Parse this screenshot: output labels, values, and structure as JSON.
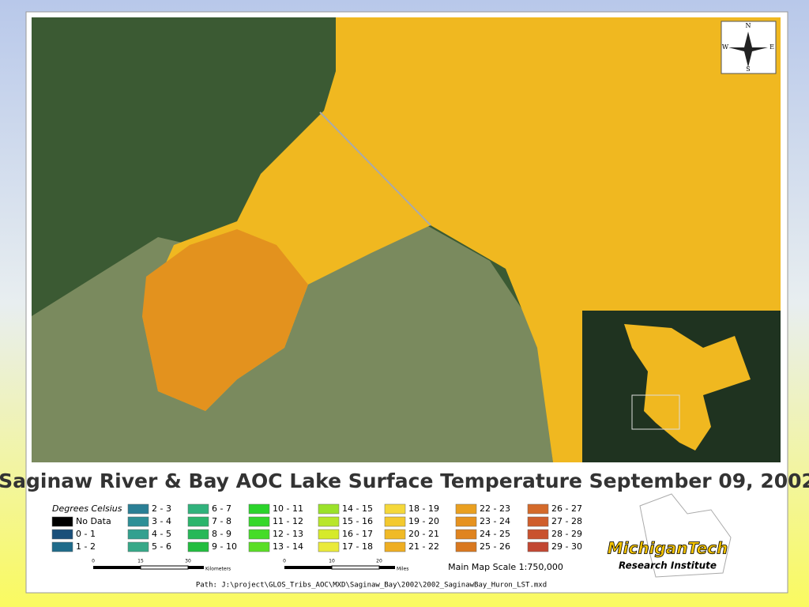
{
  "title": "Saginaw River & Bay AOC Lake Surface Temperature September 09, 2002",
  "compass": {
    "n": "N",
    "s": "S",
    "e": "E",
    "w": "W"
  },
  "legend": {
    "heading": "Degrees Celsius",
    "items": [
      {
        "label": "No Data",
        "color": "#000000"
      },
      {
        "label": "0 - 1",
        "color": "#1a4f7a"
      },
      {
        "label": "1 - 2",
        "color": "#1f6b8a"
      },
      {
        "label": "2 - 3",
        "color": "#2a7f95"
      },
      {
        "label": "3 - 4",
        "color": "#2e8f96"
      },
      {
        "label": "4 - 5",
        "color": "#33a08f"
      },
      {
        "label": "5 - 6",
        "color": "#36a888"
      },
      {
        "label": "6 - 7",
        "color": "#30b27c"
      },
      {
        "label": "7 - 8",
        "color": "#2bb56c"
      },
      {
        "label": "8 - 9",
        "color": "#27b858"
      },
      {
        "label": "9 - 10",
        "color": "#22bd3f"
      },
      {
        "label": "10 - 11",
        "color": "#2bd42b"
      },
      {
        "label": "11 - 12",
        "color": "#35d82a"
      },
      {
        "label": "12 - 13",
        "color": "#45dc28"
      },
      {
        "label": "13 - 14",
        "color": "#5ade26"
      },
      {
        "label": "14 - 15",
        "color": "#9be22a"
      },
      {
        "label": "15 - 16",
        "color": "#b8e62a"
      },
      {
        "label": "16 - 17",
        "color": "#d6ea2a"
      },
      {
        "label": "17 - 18",
        "color": "#eaea3a"
      },
      {
        "label": "18 - 19",
        "color": "#f5d83a"
      },
      {
        "label": "19 - 20",
        "color": "#f3c92e"
      },
      {
        "label": "20 - 21",
        "color": "#f0ba26"
      },
      {
        "label": "21 - 22",
        "color": "#eeae22"
      },
      {
        "label": "22 - 23",
        "color": "#eaa020"
      },
      {
        "label": "23 - 24",
        "color": "#e6921f"
      },
      {
        "label": "24 - 25",
        "color": "#e0841f"
      },
      {
        "label": "25 - 26",
        "color": "#d9781f"
      },
      {
        "label": "26 - 27",
        "color": "#d46a2a"
      },
      {
        "label": "27 - 28",
        "color": "#cf5e2c"
      },
      {
        "label": "28 - 29",
        "color": "#c9522e"
      },
      {
        "label": "29 - 30",
        "color": "#c24732"
      }
    ]
  },
  "scale_km": {
    "ticks": [
      "0",
      "15",
      "30"
    ],
    "unit": "Kilometers"
  },
  "scale_mi": {
    "ticks": [
      "0",
      "10",
      "20"
    ],
    "unit": "Miles"
  },
  "scale_text": "Main Map Scale 1:750,000",
  "logo": {
    "name": "MichiganTech",
    "sub": "Research Institute"
  },
  "path": "Path: J:\\project\\GLOS_Tribs_AOC\\MXD\\Saginaw_Bay\\2002\\2002_SaginawBay_Huron_LST.mxd"
}
